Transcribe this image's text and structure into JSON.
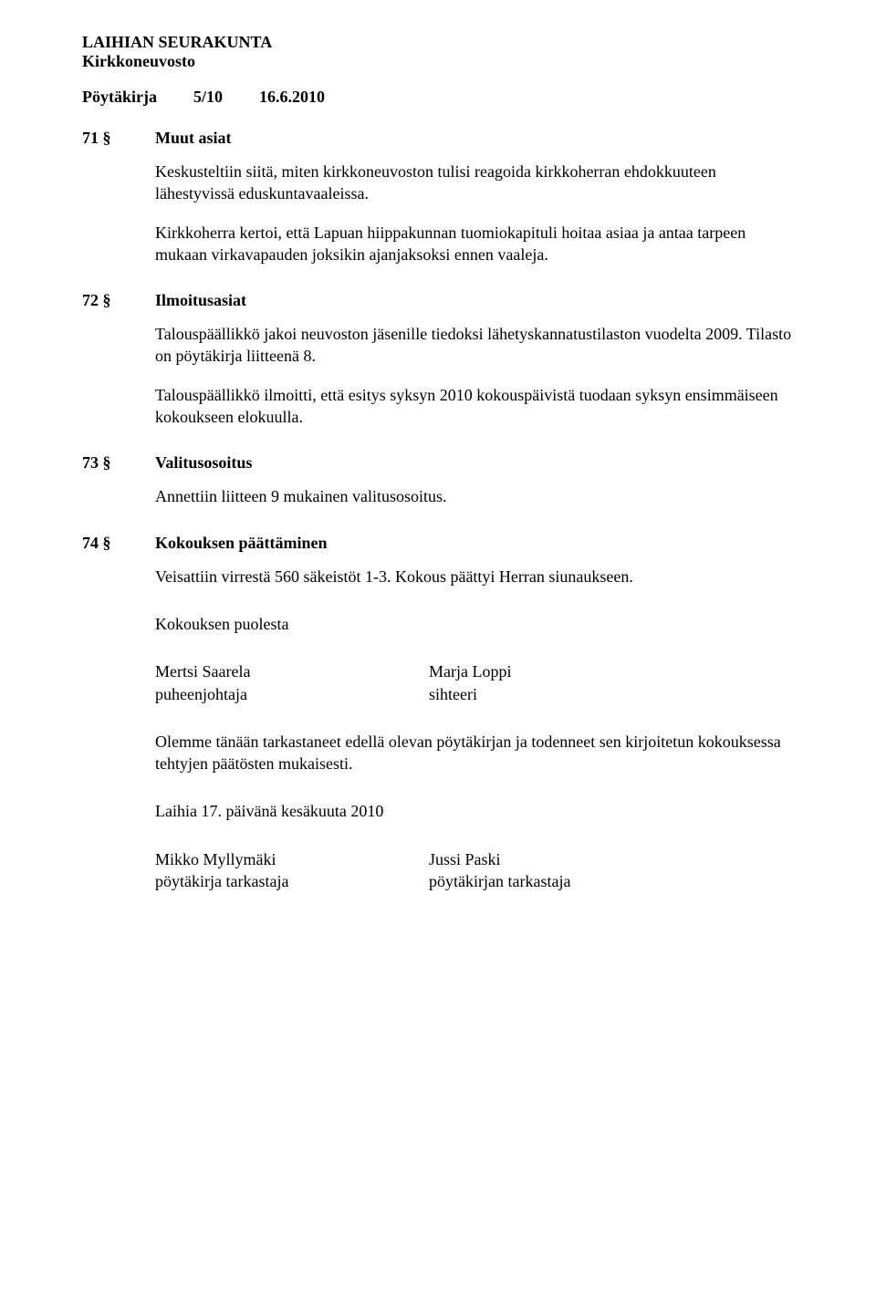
{
  "header": {
    "org": "LAIHIAN SEURAKUNTA",
    "sub": "Kirkkoneuvosto",
    "doc_type": "Pöytäkirja",
    "doc_num": "5/10",
    "doc_date": "16.6.2010"
  },
  "sections": [
    {
      "num": "71 §",
      "title": "Muut asiat",
      "paras": [
        "Keskusteltiin siitä, miten kirkkoneuvoston tulisi reagoida kirkkoherran ehdokkuuteen lähestyvissä eduskuntavaaleissa.",
        "Kirkkoherra kertoi, että Lapuan hiippakunnan tuomiokapituli hoitaa asiaa ja antaa tarpeen mukaan virkavapauden joksikin ajanjaksoksi ennen vaaleja."
      ]
    },
    {
      "num": "72 §",
      "title": "Ilmoitusasiat",
      "paras": [
        "Talouspäällikkö jakoi neuvoston jäsenille tiedoksi lähetyskannatustilaston vuodelta 2009. Tilasto on pöytäkirja liitteenä 8.",
        "Talouspäällikkö ilmoitti, että esitys syksyn 2010 kokouspäivistä tuodaan syksyn ensimmäiseen kokoukseen elokuulla."
      ]
    },
    {
      "num": "73 §",
      "title": "Valitusosoitus",
      "paras": [
        "Annettiin liitteen 9 mukainen valitusosoitus."
      ]
    },
    {
      "num": "74 §",
      "title": "Kokouksen päättäminen",
      "paras": [
        "Veisattiin virrestä 560 säkeistöt 1-3. Kokous päättyi Herran siunaukseen."
      ]
    }
  ],
  "closing": {
    "on_behalf": "Kokouksen puolesta",
    "sig1_name": "Mertsi Saarela",
    "sig1_role": "puheenjohtaja",
    "sig2_name": "Marja Loppi",
    "sig2_role": "sihteeri",
    "attest": "Olemme tänään tarkastaneet edellä olevan pöytäkirjan ja todenneet sen kirjoitetun kokouksessa tehtyjen päätösten mukaisesti.",
    "place_date": "Laihia 17. päivänä kesäkuuta 2010",
    "sig3_name": "Mikko Myllymäki",
    "sig3_role": "pöytäkirja tarkastaja",
    "sig4_name": "Jussi Paski",
    "sig4_role": "pöytäkirjan tarkastaja"
  }
}
